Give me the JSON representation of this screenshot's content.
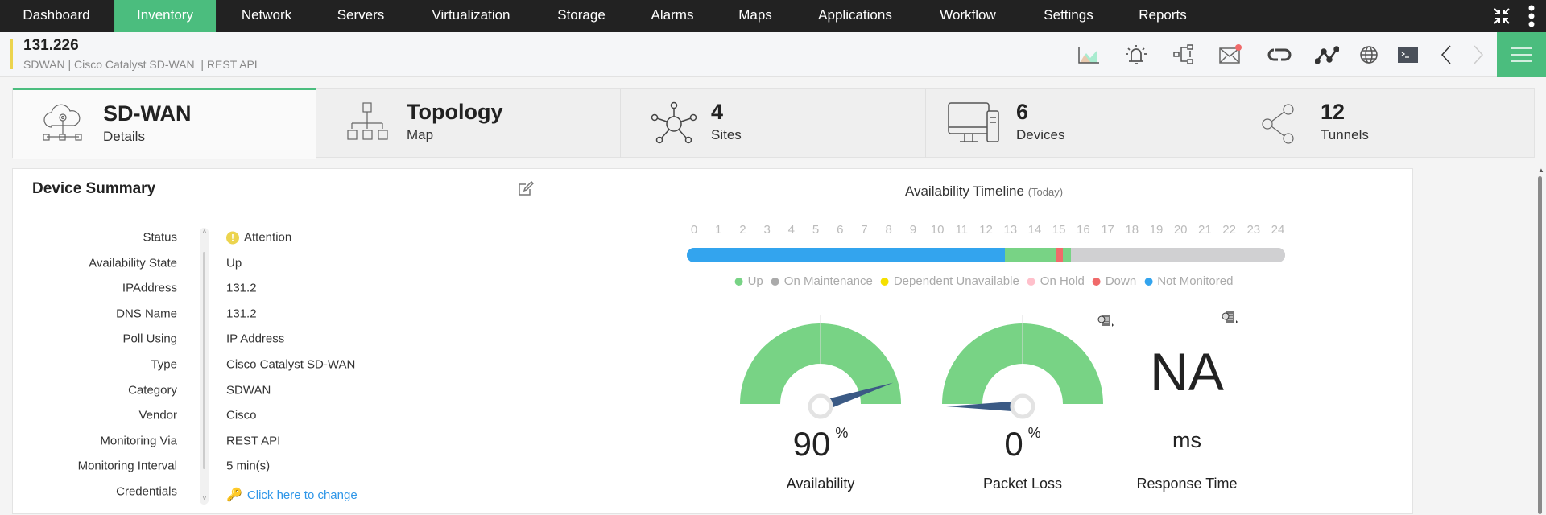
{
  "nav": {
    "items": [
      "Dashboard",
      "Inventory",
      "Network",
      "Servers",
      "Virtualization",
      "Storage",
      "Alarms",
      "Maps",
      "Applications",
      "Workflow",
      "Settings",
      "Reports"
    ],
    "active": "Inventory"
  },
  "header": {
    "title": "131.226",
    "subtitle": "SDWAN | Cisco Catalyst SD-WAN  | REST API",
    "icons": [
      "graph-icon",
      "alarm-bell-icon",
      "workflow-icon",
      "mail-icon",
      "sync-icon",
      "network-path-icon",
      "globe-icon",
      "terminal-icon",
      "previous-icon",
      "next-icon",
      "menu-icon"
    ]
  },
  "tabs": [
    {
      "big": "SD-WAN",
      "small": "Details"
    },
    {
      "big": "Topology",
      "small": "Map"
    },
    {
      "big": "4",
      "small": "Sites"
    },
    {
      "big": "6",
      "small": "Devices"
    },
    {
      "big": "12",
      "small": "Tunnels"
    }
  ],
  "summary": {
    "title": "Device Summary",
    "rows": [
      {
        "label": "Status",
        "value": "Attention"
      },
      {
        "label": "Availability State",
        "value": "Up"
      },
      {
        "label": "IPAddress",
        "value": "131.2"
      },
      {
        "label": "DNS Name",
        "value": "131.2"
      },
      {
        "label": "Poll Using",
        "value": "IP Address"
      },
      {
        "label": "Type",
        "value": "Cisco Catalyst SD-WAN"
      },
      {
        "label": "Category",
        "value": "SDWAN"
      },
      {
        "label": "Vendor",
        "value": "Cisco"
      },
      {
        "label": "Monitoring Via",
        "value": "REST API"
      },
      {
        "label": "Monitoring Interval",
        "value": "5 min(s)"
      },
      {
        "label": "Credentials",
        "value": "Click here to change"
      }
    ]
  },
  "timeline": {
    "title": "Availability Timeline",
    "sub": "(Today)",
    "ticks": [
      "0",
      "1",
      "2",
      "3",
      "4",
      "5",
      "6",
      "7",
      "8",
      "9",
      "10",
      "11",
      "12",
      "13",
      "14",
      "15",
      "16",
      "17",
      "18",
      "19",
      "20",
      "21",
      "22",
      "23",
      "24"
    ],
    "segments": [
      {
        "from": 0,
        "to": 12.75,
        "state": "Not Monitored"
      },
      {
        "from": 12.75,
        "to": 14.8,
        "state": "Up"
      },
      {
        "from": 14.8,
        "to": 15.08,
        "state": "Down"
      },
      {
        "from": 15.08,
        "to": 15.4,
        "state": "Up"
      },
      {
        "from": 15.4,
        "to": 24,
        "state": "On Maintenance"
      }
    ],
    "legend": [
      {
        "label": "Up",
        "color": "#78d385"
      },
      {
        "label": "On Maintenance",
        "color": "#aaaaaa"
      },
      {
        "label": "Dependent Unavailable",
        "color": "#f5e000"
      },
      {
        "label": "On Hold",
        "color": "#ffc0cb"
      },
      {
        "label": "Down",
        "color": "#f06a6a"
      },
      {
        "label": "Not Monitored",
        "color": "#33a4ee"
      }
    ],
    "colors": {
      "Up": "#78d385",
      "On Maintenance": "#d0d0d2",
      "Down": "#f06a6a",
      "Not Monitored": "#33a4ee"
    }
  },
  "gauges": [
    {
      "value": "90",
      "unit": "%",
      "label": "Availability",
      "percent": 90
    },
    {
      "value": "0",
      "unit": "%",
      "label": "Packet Loss",
      "percent": 0
    }
  ],
  "response": {
    "value": "NA",
    "unit": "ms",
    "label": "Response Time"
  }
}
